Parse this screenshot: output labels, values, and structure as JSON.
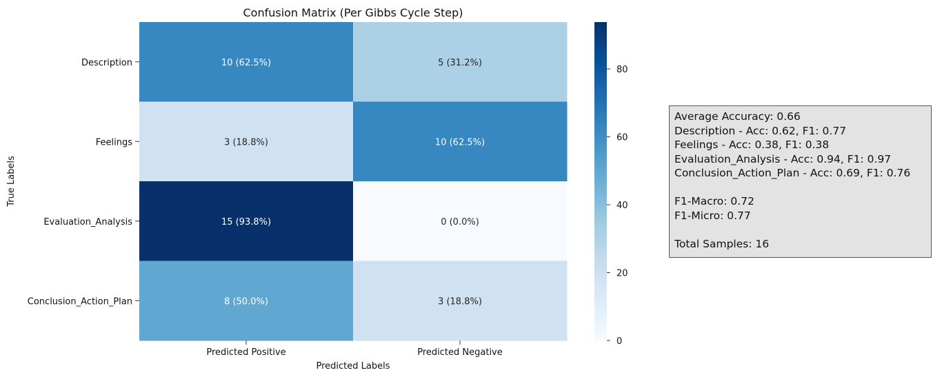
{
  "chart_data": {
    "type": "heatmap",
    "title": "Confusion Matrix (Per Gibbs Cycle Step)",
    "xlabel": "Predicted Labels",
    "ylabel": "True Labels",
    "x_categories": [
      "Predicted Positive",
      "Predicted Negative"
    ],
    "y_categories": [
      "Description",
      "Feelings",
      "Evaluation_Analysis",
      "Conclusion_Action_Plan"
    ],
    "cell_labels": [
      [
        "10 (62.5%)",
        "5 (31.2%)"
      ],
      [
        "3 (18.8%)",
        "10 (62.5%)"
      ],
      [
        "15 (93.8%)",
        "0 (0.0%)"
      ],
      [
        "8 (50.0%)",
        "3 (18.8%)"
      ]
    ],
    "values": [
      [
        62.5,
        31.2
      ],
      [
        18.8,
        62.5
      ],
      [
        93.8,
        0.0
      ],
      [
        50.0,
        18.8
      ]
    ],
    "colorbar": {
      "min": 0,
      "max": 93.8,
      "ticks": [
        0,
        20,
        40,
        60,
        80
      ],
      "colormap": "Blues"
    },
    "colormap_stops": [
      "#f7fbff",
      "#deebf7",
      "#c6dbef",
      "#9ecae1",
      "#6baed6",
      "#4292c6",
      "#2171b5",
      "#08519c",
      "#08306b"
    ]
  },
  "stats": {
    "average_accuracy": "Average Accuracy: 0.66",
    "lines": [
      "Description - Acc: 0.62, F1: 0.77",
      "Feelings - Acc: 0.38, F1: 0.38",
      "Evaluation_Analysis - Acc: 0.94, F1: 0.97",
      "Conclusion_Action_Plan - Acc: 0.69, F1: 0.76"
    ],
    "f1_macro": "F1-Macro: 0.72",
    "f1_micro": "F1-Micro: 0.77",
    "total_samples": "Total Samples: 16"
  }
}
